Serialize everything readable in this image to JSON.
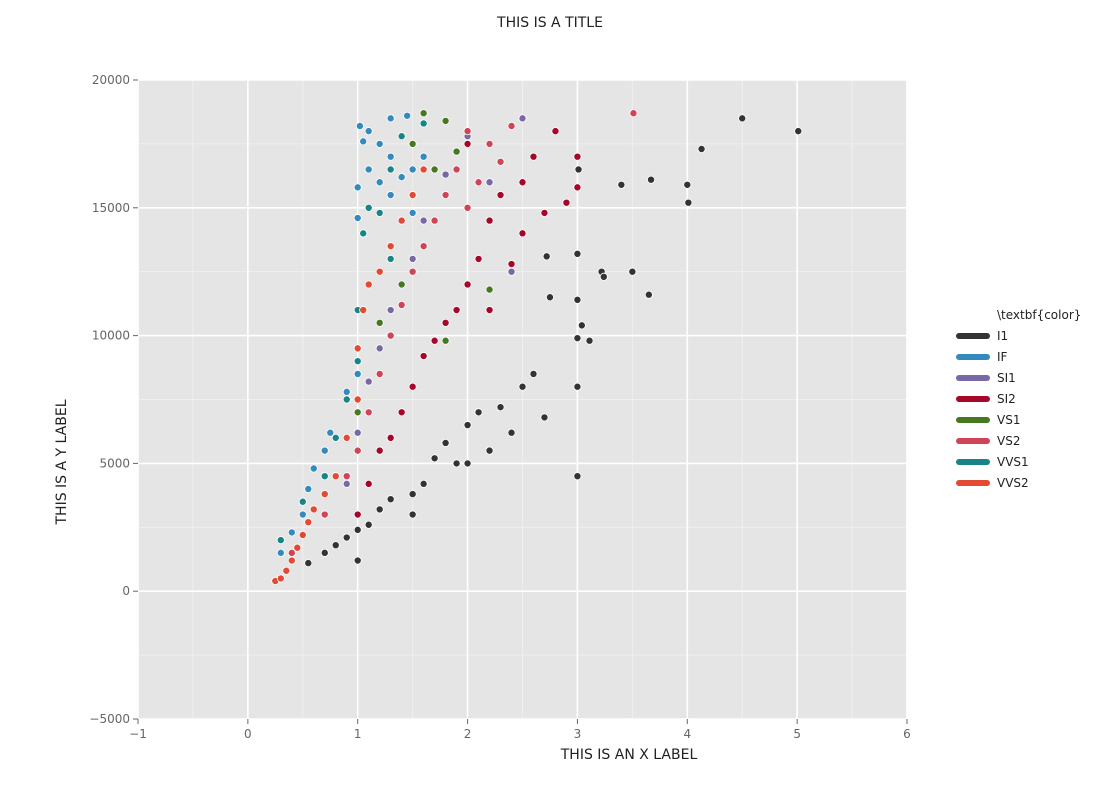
{
  "chart_data": {
    "type": "scatter",
    "title": "THIS IS A TITLE",
    "xlabel": "THIS IS AN X LABEL",
    "ylabel": "THIS IS A Y LABEL",
    "xlim": [
      -1,
      6
    ],
    "ylim": [
      -5000,
      20000
    ],
    "x_ticks": [
      -1,
      0,
      1,
      2,
      3,
      4,
      5,
      6
    ],
    "y_ticks": [
      -5000,
      0,
      5000,
      10000,
      15000,
      20000
    ],
    "x_tick_labels": [
      "−1",
      "0",
      "1",
      "2",
      "3",
      "4",
      "5",
      "6"
    ],
    "y_tick_labels": [
      "−5000",
      "0",
      "5000",
      "10000",
      "15000",
      "20000"
    ],
    "grid": true,
    "background": "#e5e5e5",
    "legend": {
      "title": "\\textbf{color}",
      "placement": "right"
    },
    "series": [
      {
        "name": "I1",
        "color": "#333333",
        "points": [
          [
            0.55,
            1100
          ],
          [
            0.7,
            1500
          ],
          [
            0.8,
            1800
          ],
          [
            0.9,
            2100
          ],
          [
            1.0,
            2400
          ],
          [
            1.0,
            1200
          ],
          [
            1.1,
            2600
          ],
          [
            1.2,
            3200
          ],
          [
            1.3,
            3600
          ],
          [
            1.5,
            3000
          ],
          [
            1.5,
            3800
          ],
          [
            1.6,
            4200
          ],
          [
            1.7,
            5200
          ],
          [
            1.8,
            5800
          ],
          [
            1.9,
            5000
          ],
          [
            2.0,
            5000
          ],
          [
            2.0,
            6500
          ],
          [
            2.1,
            7000
          ],
          [
            2.2,
            5500
          ],
          [
            2.3,
            7200
          ],
          [
            2.4,
            6200
          ],
          [
            2.5,
            8000
          ],
          [
            2.6,
            8500
          ],
          [
            2.7,
            6800
          ],
          [
            2.72,
            13100
          ],
          [
            2.75,
            11500
          ],
          [
            3.0,
            4500
          ],
          [
            3.0,
            8000
          ],
          [
            3.0,
            9900
          ],
          [
            3.0,
            11400
          ],
          [
            3.0,
            13200
          ],
          [
            3.01,
            16500
          ],
          [
            3.04,
            10400
          ],
          [
            3.11,
            9800
          ],
          [
            3.22,
            12500
          ],
          [
            3.24,
            12300
          ],
          [
            3.4,
            15900
          ],
          [
            3.5,
            12500
          ],
          [
            3.65,
            11600
          ],
          [
            3.67,
            16100
          ],
          [
            4.0,
            15900
          ],
          [
            4.01,
            15200
          ],
          [
            4.13,
            17300
          ],
          [
            4.5,
            18500
          ],
          [
            5.01,
            18000
          ]
        ]
      },
      {
        "name": "IF",
        "color": "#348abd",
        "points": [
          [
            0.3,
            1500
          ],
          [
            0.4,
            2300
          ],
          [
            0.5,
            3000
          ],
          [
            0.55,
            4000
          ],
          [
            0.6,
            4800
          ],
          [
            0.7,
            5500
          ],
          [
            0.75,
            6200
          ],
          [
            0.9,
            7800
          ],
          [
            1.0,
            8500
          ],
          [
            1.0,
            14600
          ],
          [
            1.0,
            15800
          ],
          [
            1.02,
            18200
          ],
          [
            1.05,
            17600
          ],
          [
            1.1,
            16500
          ],
          [
            1.1,
            18000
          ],
          [
            1.2,
            16000
          ],
          [
            1.2,
            17500
          ],
          [
            1.3,
            15500
          ],
          [
            1.3,
            17000
          ],
          [
            1.3,
            18500
          ],
          [
            1.4,
            16200
          ],
          [
            1.45,
            18600
          ],
          [
            1.5,
            14800
          ],
          [
            1.5,
            16500
          ],
          [
            1.6,
            17000
          ]
        ]
      },
      {
        "name": "SI1",
        "color": "#7a68a6",
        "points": [
          [
            0.9,
            4200
          ],
          [
            1.0,
            6200
          ],
          [
            1.1,
            8200
          ],
          [
            1.2,
            9500
          ],
          [
            1.3,
            11000
          ],
          [
            1.5,
            13000
          ],
          [
            1.6,
            14500
          ],
          [
            1.8,
            16300
          ],
          [
            2.0,
            17800
          ],
          [
            2.2,
            16000
          ],
          [
            2.4,
            12500
          ],
          [
            2.5,
            18500
          ]
        ]
      },
      {
        "name": "SI2",
        "color": "#a60628",
        "points": [
          [
            1.0,
            3000
          ],
          [
            1.1,
            4200
          ],
          [
            1.2,
            5500
          ],
          [
            1.3,
            6000
          ],
          [
            1.4,
            7000
          ],
          [
            1.5,
            8000
          ],
          [
            1.6,
            9200
          ],
          [
            1.7,
            9800
          ],
          [
            1.8,
            10500
          ],
          [
            1.9,
            11000
          ],
          [
            2.0,
            12000
          ],
          [
            2.0,
            17500
          ],
          [
            2.1,
            13000
          ],
          [
            2.2,
            11000
          ],
          [
            2.2,
            14500
          ],
          [
            2.3,
            15500
          ],
          [
            2.4,
            12800
          ],
          [
            2.5,
            16000
          ],
          [
            2.5,
            14000
          ],
          [
            2.6,
            17000
          ],
          [
            2.7,
            14800
          ],
          [
            2.8,
            18000
          ],
          [
            2.9,
            15200
          ],
          [
            3.0,
            15800
          ],
          [
            3.0,
            17000
          ]
        ]
      },
      {
        "name": "VS1",
        "color": "#467821",
        "points": [
          [
            1.0,
            7000
          ],
          [
            1.2,
            10500
          ],
          [
            1.4,
            12000
          ],
          [
            1.5,
            17500
          ],
          [
            1.6,
            18700
          ],
          [
            1.7,
            16500
          ],
          [
            1.8,
            9800
          ],
          [
            1.8,
            18400
          ],
          [
            1.9,
            17200
          ],
          [
            2.2,
            11800
          ]
        ]
      },
      {
        "name": "VS2",
        "color": "#cf4457",
        "points": [
          [
            0.4,
            1500
          ],
          [
            0.5,
            2200
          ],
          [
            0.7,
            3000
          ],
          [
            0.9,
            4500
          ],
          [
            1.0,
            5500
          ],
          [
            1.1,
            7000
          ],
          [
            1.2,
            8500
          ],
          [
            1.3,
            10000
          ],
          [
            1.4,
            11200
          ],
          [
            1.5,
            12500
          ],
          [
            1.6,
            13500
          ],
          [
            1.7,
            14500
          ],
          [
            1.8,
            15500
          ],
          [
            1.9,
            16500
          ],
          [
            2.0,
            15000
          ],
          [
            2.0,
            18000
          ],
          [
            2.1,
            16000
          ],
          [
            2.2,
            17500
          ],
          [
            2.3,
            16800
          ],
          [
            2.4,
            18200
          ],
          [
            3.51,
            18700
          ]
        ]
      },
      {
        "name": "VVS1",
        "color": "#188487",
        "points": [
          [
            0.3,
            2000
          ],
          [
            0.5,
            3500
          ],
          [
            0.7,
            4500
          ],
          [
            0.8,
            6000
          ],
          [
            0.9,
            7500
          ],
          [
            1.0,
            9000
          ],
          [
            1.0,
            11000
          ],
          [
            1.05,
            14000
          ],
          [
            1.1,
            15000
          ],
          [
            1.2,
            14800
          ],
          [
            1.3,
            16500
          ],
          [
            1.3,
            13000
          ],
          [
            1.4,
            17800
          ],
          [
            1.5,
            15500
          ],
          [
            1.6,
            18300
          ]
        ]
      },
      {
        "name": "VVS2",
        "color": "#e24a33",
        "points": [
          [
            0.25,
            400
          ],
          [
            0.3,
            500
          ],
          [
            0.35,
            800
          ],
          [
            0.4,
            1200
          ],
          [
            0.45,
            1700
          ],
          [
            0.5,
            2200
          ],
          [
            0.55,
            2700
          ],
          [
            0.6,
            3200
          ],
          [
            0.7,
            3800
          ],
          [
            0.8,
            4500
          ],
          [
            0.9,
            6000
          ],
          [
            1.0,
            7500
          ],
          [
            1.0,
            9500
          ],
          [
            1.05,
            11000
          ],
          [
            1.1,
            12000
          ],
          [
            1.2,
            12500
          ],
          [
            1.3,
            13500
          ],
          [
            1.4,
            14500
          ],
          [
            1.5,
            15500
          ],
          [
            1.6,
            16500
          ]
        ]
      }
    ]
  }
}
